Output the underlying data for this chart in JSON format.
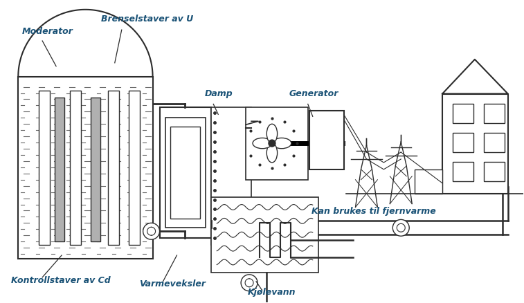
{
  "bg_color": "#ffffff",
  "label_color": "#1a5276",
  "line_color": "#2c2c2c",
  "labels": {
    "moderator": "Moderator",
    "brensel": "Brenselstaver av U",
    "kontroll": "Kontrollstaver av Cd",
    "varmeveksler": "Varmeveksler",
    "damp": "Damp",
    "generator": "Generator",
    "kjolevann": "Kjølevann",
    "fjernvarme": "Kan brukes til fjernvarme"
  },
  "figsize": [
    7.57,
    4.38
  ],
  "dpi": 100
}
